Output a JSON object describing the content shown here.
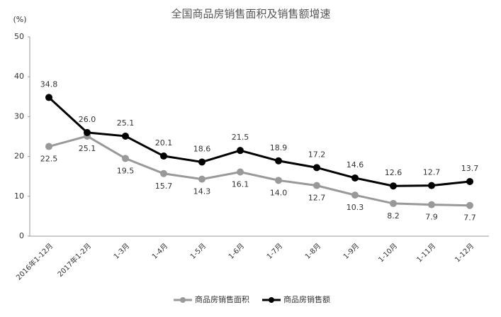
{
  "chart_data": {
    "type": "line",
    "title": "全国商品房销售面积及销售额增速",
    "y_label": "(%)",
    "categories": [
      "2016年1-12月",
      "2017年1-2月",
      "1-3月",
      "1-4月",
      "1-5月",
      "1-6月",
      "1-7月",
      "1-8月",
      "1-9月",
      "1-10月",
      "1-11月",
      "1-12月"
    ],
    "series": [
      {
        "name": "商品房销售面积",
        "color": "#999999",
        "values": [
          22.5,
          25.1,
          19.5,
          15.7,
          14.3,
          16.1,
          14.0,
          12.7,
          10.3,
          8.2,
          7.9,
          7.7
        ],
        "value_labels": [
          "22.5",
          "25.1",
          "19.5",
          "15.7",
          "14.3",
          "16.1",
          "14.0",
          "12.7",
          "10.3",
          "8.2",
          "7.9",
          "7.7"
        ]
      },
      {
        "name": "商品房销售额",
        "color": "#000000",
        "values": [
          34.8,
          26.0,
          25.1,
          20.1,
          18.6,
          21.5,
          18.9,
          17.2,
          14.6,
          12.6,
          12.7,
          13.7
        ],
        "value_labels": [
          "34.8",
          "26.0",
          "25.1",
          "20.1",
          "18.6",
          "21.5",
          "18.9",
          "17.2",
          "14.6",
          "12.6",
          "12.7",
          "13.7"
        ]
      }
    ],
    "ylim": [
      0,
      50
    ],
    "yticks": [
      0,
      10,
      20,
      30,
      40,
      50
    ],
    "grid": false,
    "legend": "bottom"
  }
}
